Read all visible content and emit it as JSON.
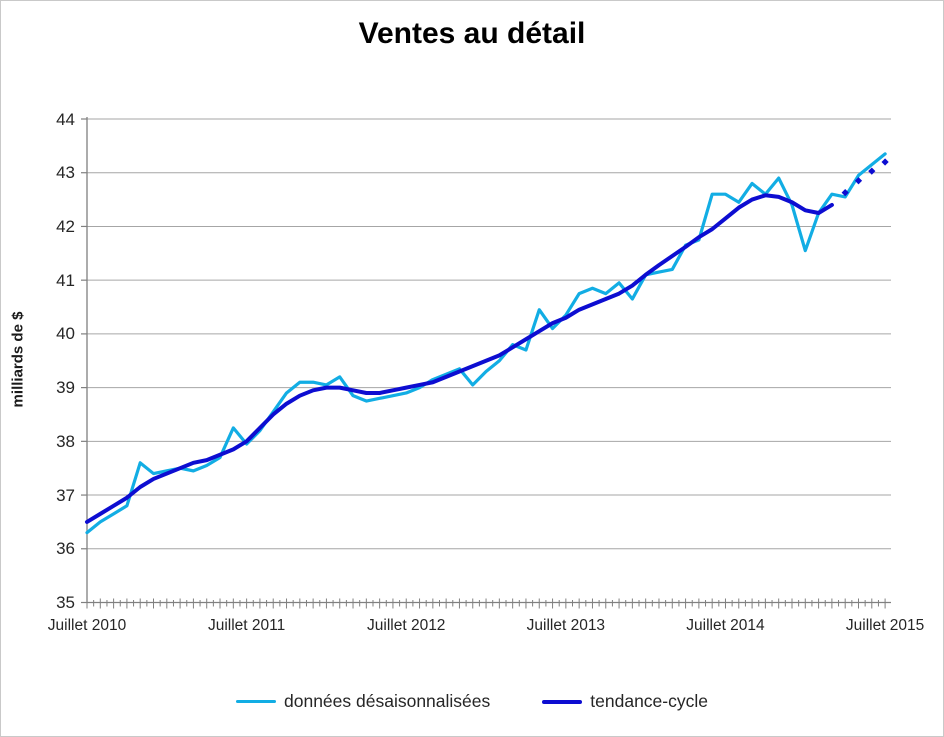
{
  "page": {
    "title": "Ventes au détail"
  },
  "y_axis": {
    "title": "milliards de $",
    "min": 35,
    "max": 44,
    "step": 1
  },
  "x_axis": {
    "tick_labels": [
      "Juillet 2010",
      "Juillet 2011",
      "Juillet 2012",
      "Juillet 2013",
      "Juillet 2014",
      "Juillet 2015"
    ]
  },
  "legend": {
    "items": [
      {
        "label": "données désaisonnalisées",
        "color": "#12ade4"
      },
      {
        "label": "tendance-cycle",
        "color": "#0d0dd1"
      }
    ]
  },
  "colors": {
    "seasonally_adjusted_line": "#12ade4",
    "trend_cycle_line": "#0d0dd1",
    "gridline": "#a6a6a6",
    "axis": "#808080",
    "text": "#262626",
    "background": "#ffffff"
  },
  "chart_data": {
    "type": "line",
    "title": "Ventes au détail",
    "xlabel": "",
    "ylabel": "milliards de $",
    "ylim": [
      35,
      44
    ],
    "grid": true,
    "legend_position": "bottom",
    "categories": [
      "2010-07",
      "2010-08",
      "2010-09",
      "2010-10",
      "2010-11",
      "2010-12",
      "2011-01",
      "2011-02",
      "2011-03",
      "2011-04",
      "2011-05",
      "2011-06",
      "2011-07",
      "2011-08",
      "2011-09",
      "2011-10",
      "2011-11",
      "2011-12",
      "2012-01",
      "2012-02",
      "2012-03",
      "2012-04",
      "2012-05",
      "2012-06",
      "2012-07",
      "2012-08",
      "2012-09",
      "2012-10",
      "2012-11",
      "2012-12",
      "2013-01",
      "2013-02",
      "2013-03",
      "2013-04",
      "2013-05",
      "2013-06",
      "2013-07",
      "2013-08",
      "2013-09",
      "2013-10",
      "2013-11",
      "2013-12",
      "2014-01",
      "2014-02",
      "2014-03",
      "2014-04",
      "2014-05",
      "2014-06",
      "2014-07",
      "2014-08",
      "2014-09",
      "2014-10",
      "2014-11",
      "2014-12",
      "2015-01",
      "2015-02",
      "2015-03",
      "2015-04",
      "2015-05",
      "2015-06",
      "2015-07"
    ],
    "series": [
      {
        "name": "données désaisonnalisées",
        "color": "#12ade4",
        "line_width": 3.2,
        "style": "solid",
        "values": [
          36.3,
          36.5,
          36.65,
          36.8,
          37.6,
          37.4,
          37.45,
          37.5,
          37.45,
          37.55,
          37.7,
          38.25,
          37.95,
          38.2,
          38.55,
          38.9,
          39.1,
          39.1,
          39.05,
          39.2,
          38.85,
          38.75,
          38.8,
          38.85,
          38.9,
          39.0,
          39.15,
          39.25,
          39.35,
          39.05,
          39.3,
          39.5,
          39.8,
          39.7,
          40.45,
          40.1,
          40.35,
          40.75,
          40.85,
          40.75,
          40.95,
          40.65,
          41.1,
          41.15,
          41.2,
          41.65,
          41.75,
          42.6,
          42.6,
          42.45,
          42.8,
          42.6,
          42.9,
          42.4,
          41.55,
          42.25,
          42.6,
          42.55,
          42.95,
          43.15,
          43.35
        ]
      },
      {
        "name": "tendance-cycle",
        "color": "#0d0dd1",
        "line_width": 4,
        "style": "solid-then-forecast-markers",
        "solid_until_index": 56,
        "values": [
          36.5,
          36.65,
          36.8,
          36.95,
          37.15,
          37.3,
          37.4,
          37.5,
          37.6,
          37.65,
          37.75,
          37.85,
          38.0,
          38.25,
          38.5,
          38.7,
          38.85,
          38.95,
          39.0,
          39.0,
          38.95,
          38.9,
          38.9,
          38.95,
          39.0,
          39.05,
          39.1,
          39.2,
          39.3,
          39.4,
          39.5,
          39.6,
          39.75,
          39.9,
          40.05,
          40.2,
          40.3,
          40.45,
          40.55,
          40.65,
          40.75,
          40.9,
          41.1,
          41.28,
          41.45,
          41.62,
          41.8,
          41.95,
          42.15,
          42.35,
          42.5,
          42.58,
          42.55,
          42.45,
          42.3,
          42.25,
          42.4,
          42.63,
          42.85,
          43.03,
          43.2
        ]
      }
    ]
  }
}
